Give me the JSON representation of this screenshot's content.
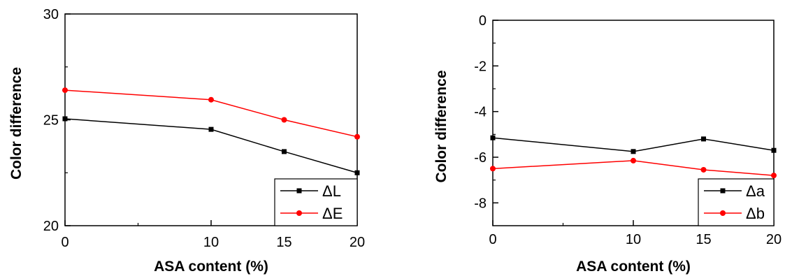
{
  "chart_data": [
    {
      "type": "line",
      "x": [
        0,
        10,
        15,
        20
      ],
      "x_tick_labels": [
        "0",
        "10",
        "15",
        "20"
      ],
      "xlim": [
        0,
        20
      ],
      "y_ticks": [
        20,
        25,
        30
      ],
      "y_tick_labels": [
        "20",
        "25",
        "30"
      ],
      "ylim": [
        20,
        30
      ],
      "xlabel": "ASA content (%)",
      "ylabel": "Color difference",
      "grid": false,
      "legend_position": "bottom-right",
      "series": [
        {
          "name": "ΔL",
          "values": [
            25.05,
            24.55,
            23.5,
            22.5
          ],
          "color": "#000000",
          "marker": "square"
        },
        {
          "name": "ΔE",
          "values": [
            26.4,
            25.95,
            25.0,
            24.2
          ],
          "color": "#ff0000",
          "marker": "circle"
        }
      ]
    },
    {
      "type": "line",
      "x": [
        0,
        10,
        15,
        20
      ],
      "x_tick_labels": [
        "0",
        "10",
        "15",
        "20"
      ],
      "xlim": [
        0,
        20
      ],
      "y_ticks": [
        0,
        -2,
        -4,
        -6,
        -8
      ],
      "y_tick_labels": [
        "0",
        "-2",
        "-4",
        "-6",
        "-8"
      ],
      "ylim": [
        -9,
        0
      ],
      "xlabel": "ASA content (%)",
      "ylabel": "Color difference",
      "grid": false,
      "legend_position": "bottom-right",
      "series": [
        {
          "name": "Δa",
          "values": [
            -5.15,
            -5.75,
            -5.2,
            -5.7
          ],
          "color": "#000000",
          "marker": "square"
        },
        {
          "name": "Δb",
          "values": [
            -6.5,
            -6.15,
            -6.55,
            -6.8
          ],
          "color": "#ff0000",
          "marker": "circle"
        }
      ]
    }
  ]
}
